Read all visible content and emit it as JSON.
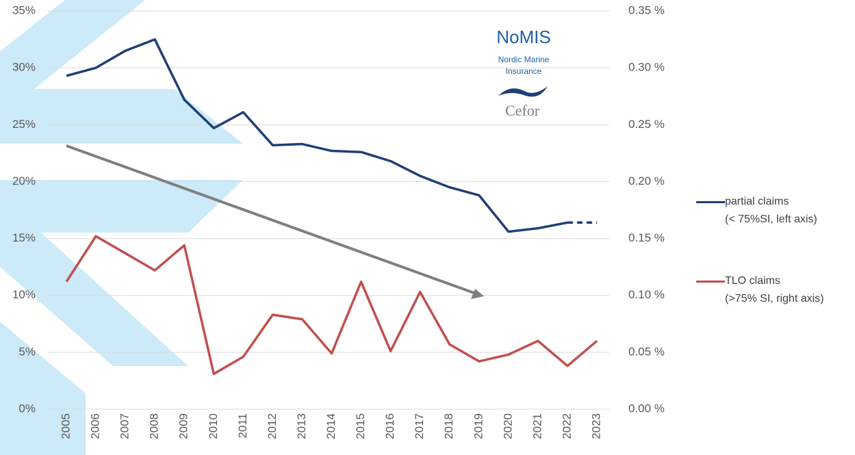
{
  "chart_data": {
    "type": "line",
    "categories": [
      "2005",
      "2006",
      "2007",
      "2008",
      "2009",
      "2010",
      "2011",
      "2012",
      "2013",
      "2014",
      "2015",
      "2016",
      "2017",
      "2018",
      "2019",
      "2020",
      "2021",
      "2022",
      "2023"
    ],
    "series": [
      {
        "name": "partial claims\n(< 75%SI, left axis)",
        "color": "#1f3f77",
        "dash_last": true,
        "values": [
          29.3,
          30.0,
          31.5,
          32.5,
          27.2,
          24.7,
          26.1,
          23.2,
          23.3,
          22.7,
          22.6,
          21.8,
          20.5,
          19.5,
          18.8,
          15.6,
          15.9,
          16.4,
          16.4
        ]
      },
      {
        "name": "TLO claims\n(>75% SI, right axis)",
        "color": "#c0504d",
        "axis": "y2",
        "values": [
          0.112,
          0.152,
          0.137,
          0.122,
          0.144,
          0.031,
          0.046,
          0.083,
          0.079,
          0.049,
          0.112,
          0.051,
          0.103,
          0.057,
          0.042,
          0.048,
          0.06,
          0.038,
          0.06
        ]
      }
    ],
    "ylim": [
      0,
      35
    ],
    "yticks": [
      {
        "value": 0,
        "label": "0%"
      },
      {
        "value": 5,
        "label": "5%"
      },
      {
        "value": 10,
        "label": "10%"
      },
      {
        "value": 15,
        "label": "15%"
      },
      {
        "value": 20,
        "label": "20%"
      },
      {
        "value": 25,
        "label": "25%"
      },
      {
        "value": 30,
        "label": "30%"
      },
      {
        "value": 35,
        "label": "35%"
      }
    ],
    "y2lim": [
      0,
      0.35
    ],
    "y2ticks": [
      {
        "value": 0,
        "label": "0.00 %"
      },
      {
        "value": 0.05,
        "label": "0.05 %"
      },
      {
        "value": 0.1,
        "label": "0.10 %"
      },
      {
        "value": 0.15,
        "label": "0.15 %"
      },
      {
        "value": 0.2,
        "label": "0.20 %"
      },
      {
        "value": 0.25,
        "label": "0.25 %"
      },
      {
        "value": 0.3,
        "label": "0.30 %"
      },
      {
        "value": 0.35,
        "label": "0.35 %"
      }
    ],
    "grid": true,
    "legend": "right",
    "logo": {
      "name": "NoMIS",
      "line1": "Nordic Marine",
      "line2": "Insurance",
      "org": "Cefor"
    }
  }
}
